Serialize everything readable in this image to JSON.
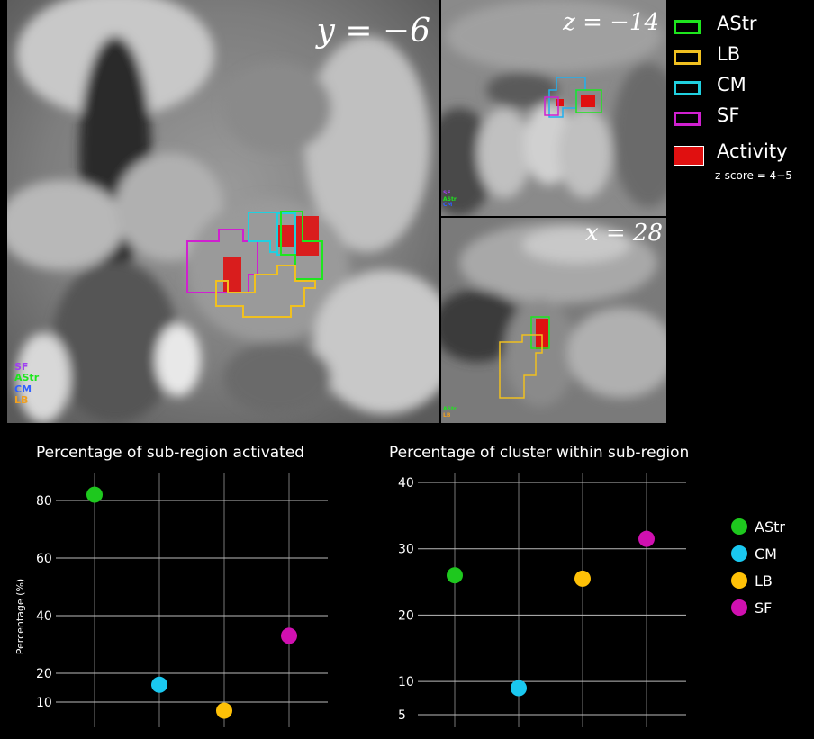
{
  "brain_panels": {
    "coronal_label": "y = −6",
    "axial_label": "z = −14",
    "sagittal_label": "x = 28",
    "coronal_legend": [
      "SF",
      "AStr",
      "CM",
      "LB"
    ],
    "axial_legend": [
      "SF",
      "AStr",
      "CM"
    ],
    "sagittal_legend": [
      "AStr",
      "LB"
    ]
  },
  "legend": {
    "items": [
      {
        "label": "AStr",
        "color": "#1ee61e"
      },
      {
        "label": "LB",
        "color": "#f0c020"
      },
      {
        "label": "CM",
        "color": "#20d0e0"
      },
      {
        "label": "SF",
        "color": "#d020d0"
      }
    ],
    "activity_label": "Activity",
    "zscore_label": "z-score = 4−5",
    "activity_color": "#e01010"
  },
  "colors": {
    "AStr": "#1ec81e",
    "CM": "#1ac8f0",
    "LB": "#ffc107",
    "SF": "#d010b0",
    "SF_text": "#a040f0",
    "CM_text": "#3060ff"
  },
  "chart_data": [
    {
      "type": "scatter",
      "title": "Percentage of sub-region activated",
      "ylabel": "Percentage (%)",
      "xlabel": "",
      "categories": [
        "AStr",
        "CM",
        "LB",
        "SF"
      ],
      "values": [
        82,
        16,
        7,
        33
      ],
      "yticks": [
        10,
        20,
        40,
        60,
        80
      ],
      "ylim": [
        3,
        90
      ],
      "grid": true
    },
    {
      "type": "scatter",
      "title": "Percentage of cluster within sub-region",
      "ylabel": "",
      "xlabel": "",
      "categories": [
        "AStr",
        "CM",
        "LB",
        "SF"
      ],
      "values": [
        26,
        9,
        25.5,
        31.5
      ],
      "yticks": [
        5,
        10,
        20,
        30,
        40
      ],
      "ylim": [
        3,
        42
      ],
      "grid": true,
      "legend": {
        "position": "right",
        "entries": [
          "AStr",
          "CM",
          "LB",
          "SF"
        ]
      }
    }
  ]
}
